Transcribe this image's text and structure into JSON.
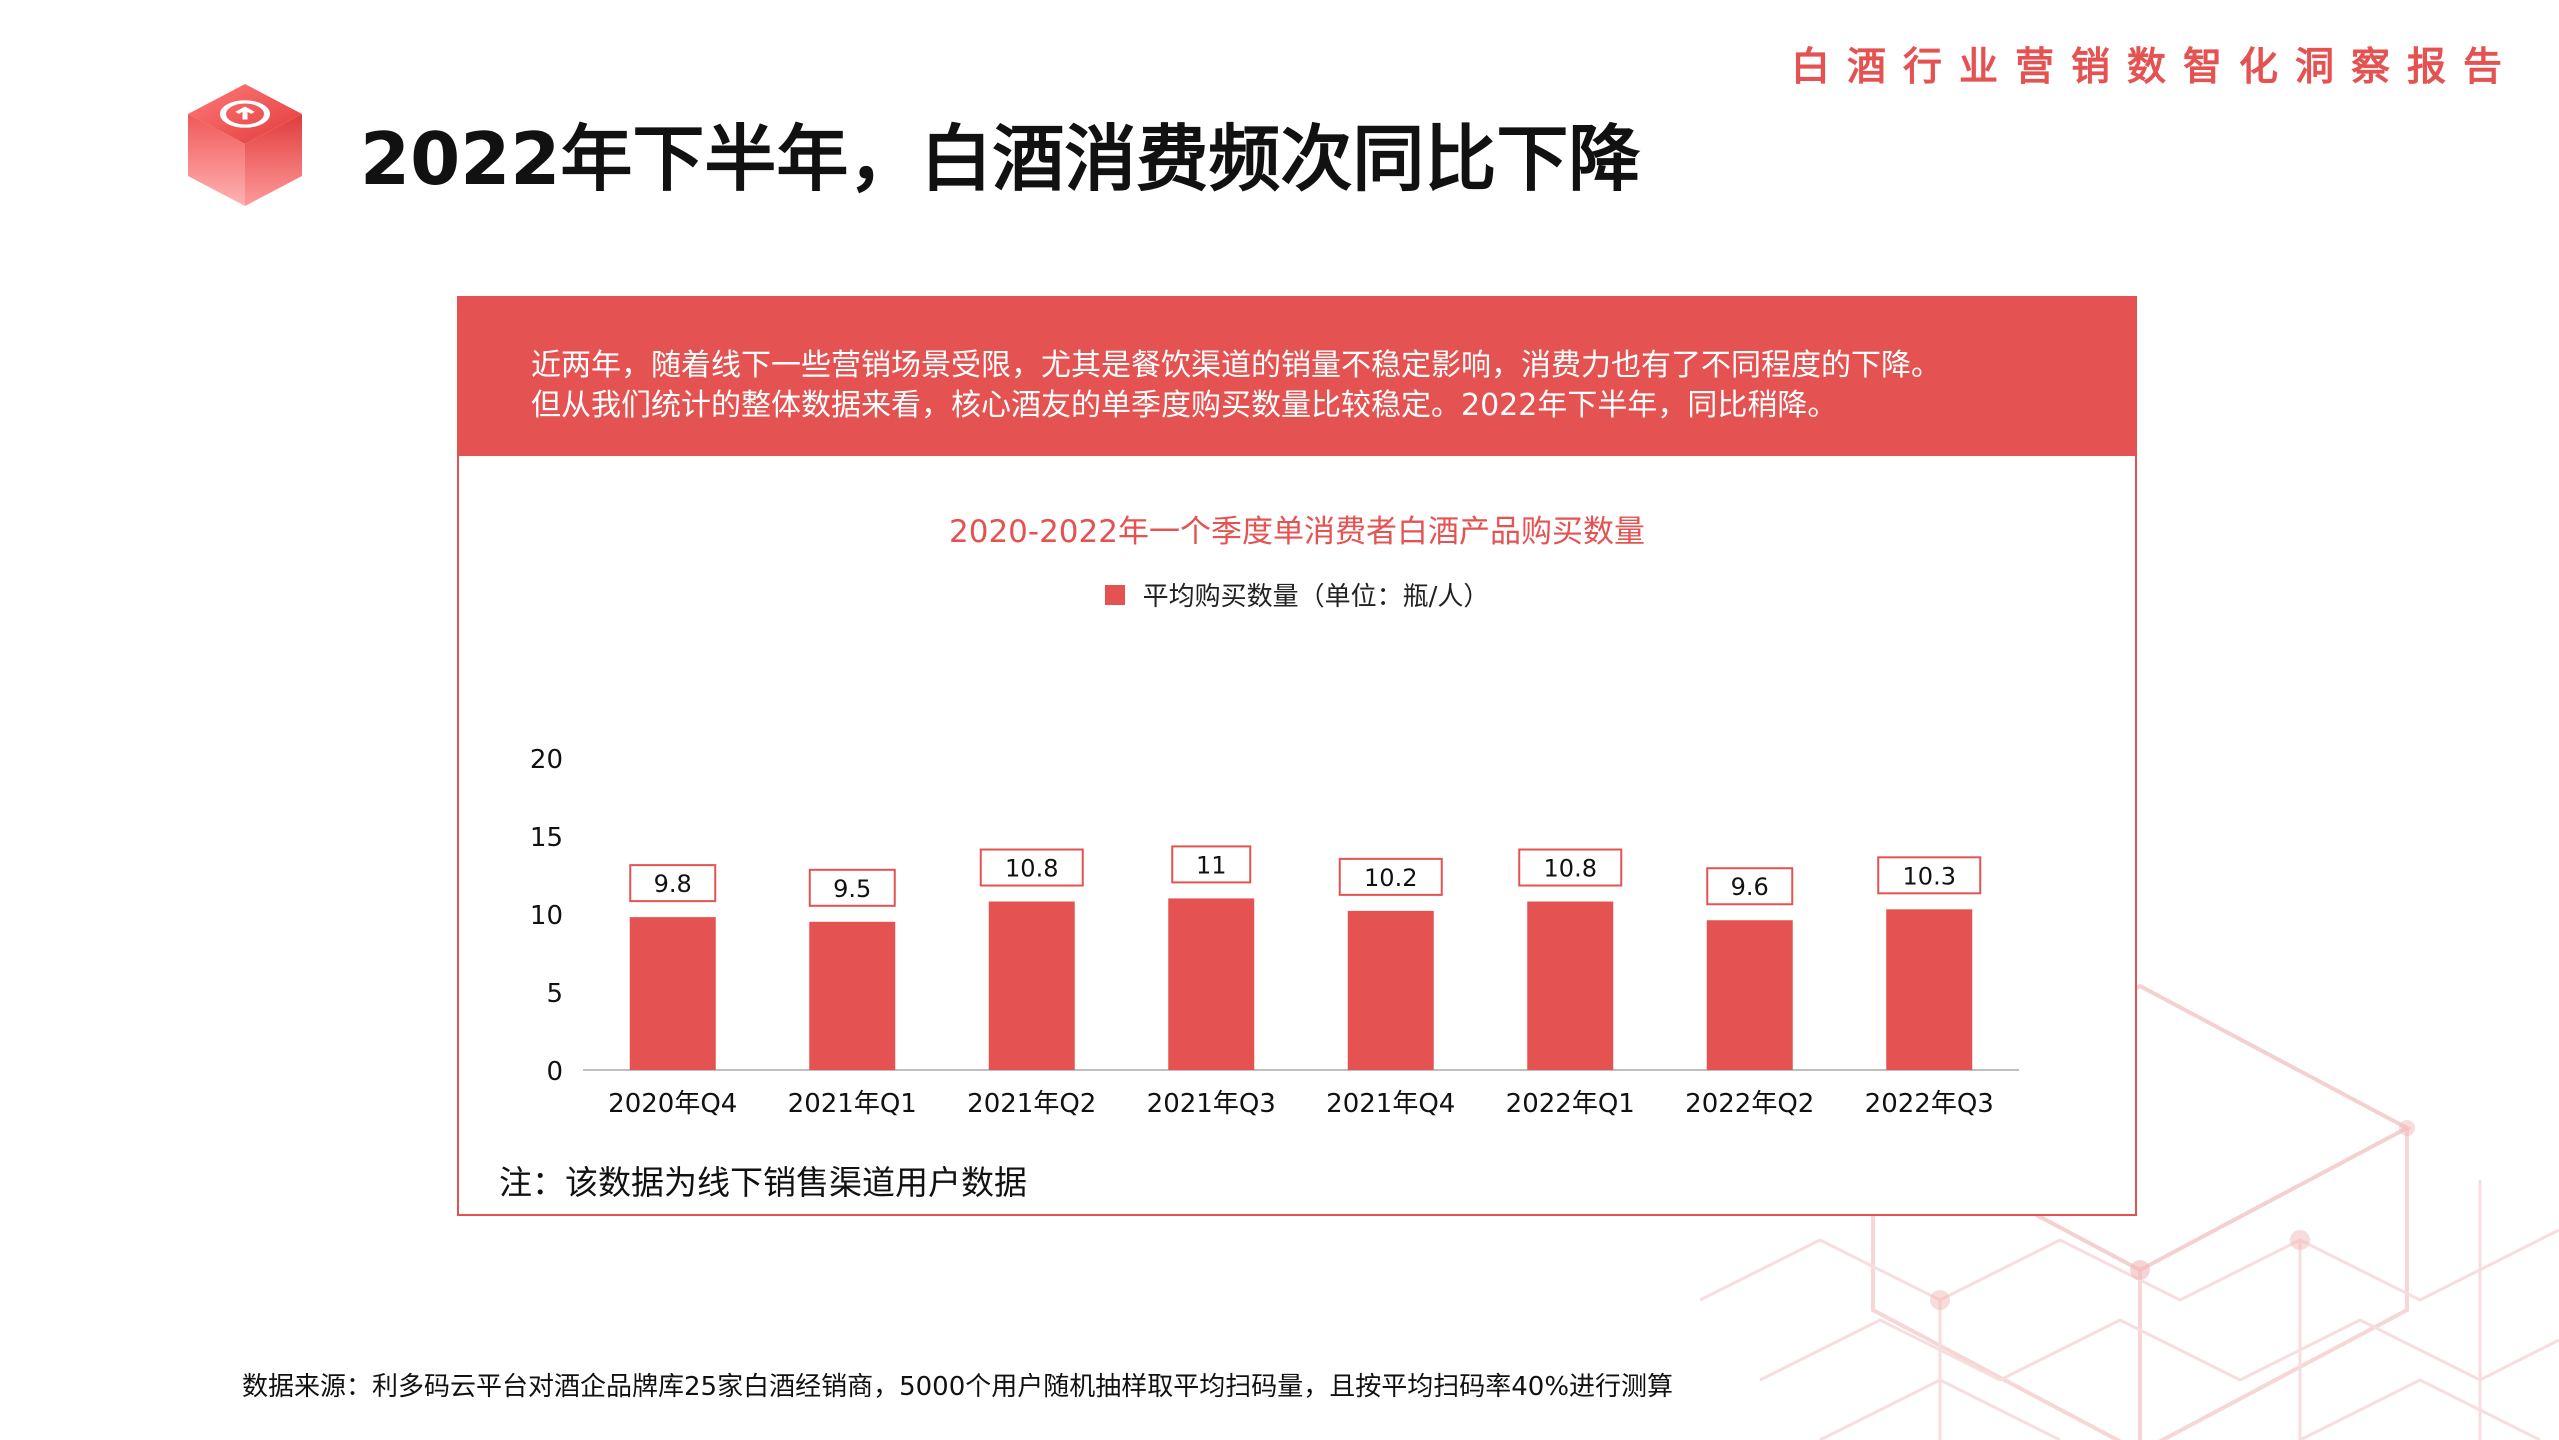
{
  "header": {
    "report_label": "白酒行业营销数智化洞察报告",
    "title": "2022年下半年，白酒消费频次同比下降"
  },
  "banner": {
    "line1": "近两年，随着线下一些营销场景受限，尤其是餐饮渠道的销量不稳定影响，消费力也有了不同程度的下降。",
    "line2": "但从我们统计的整体数据来看，核心酒友的单季度购买数量比较稳定。2022年下半年，同比稍降。"
  },
  "chart_data": {
    "type": "bar",
    "title": "2020-2022年一个季度单消费者白酒产品购买数量",
    "legend": "平均购买数量（单位：瓶/人）",
    "categories": [
      "2020年Q4",
      "2021年Q1",
      "2021年Q2",
      "2021年Q3",
      "2021年Q4",
      "2022年Q1",
      "2022年Q2",
      "2022年Q3"
    ],
    "series": [
      {
        "name": "平均购买数量（单位：瓶/人）",
        "values": [
          9.8,
          9.5,
          10.8,
          11,
          10.2,
          10.8,
          9.6,
          10.3
        ]
      }
    ],
    "yticks": [
      0,
      5,
      10,
      15,
      20
    ],
    "ylim": [
      0,
      20
    ],
    "color": "#e45352"
  },
  "note": "注：该数据为线下销售渠道用户数据",
  "source": "数据来源：利多码云平台对酒企品牌库25家白酒经销商，5000个用户随机抽样取平均扫码量，且按平均扫码率40%进行测算"
}
